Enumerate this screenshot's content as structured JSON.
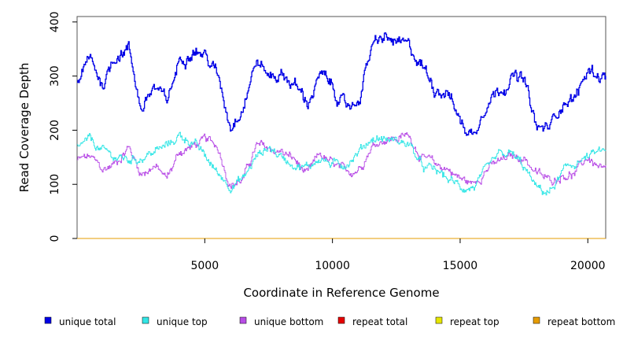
{
  "chart_data": {
    "type": "line",
    "title": "",
    "xlabel": "Coordinate in Reference Genome",
    "ylabel": "Read Coverage Depth",
    "xlim": [
      0,
      20700
    ],
    "ylim": [
      0,
      410
    ],
    "xticks": [
      5000,
      10000,
      15000,
      20000
    ],
    "xtick_labels": [
      "5000",
      "10000",
      "15000",
      "20000"
    ],
    "yticks": [
      0,
      100,
      200,
      300,
      400
    ],
    "ytick_labels": [
      "0",
      "100",
      "200",
      "300",
      "400"
    ],
    "x": [
      0,
      500,
      1000,
      1500,
      2000,
      2500,
      3000,
      3500,
      4000,
      4500,
      5000,
      5500,
      6000,
      6500,
      7000,
      7500,
      8000,
      8500,
      9000,
      9500,
      10000,
      10500,
      11000,
      11500,
      12000,
      12500,
      13000,
      13500,
      14000,
      14500,
      15000,
      15500,
      16000,
      16500,
      17000,
      17500,
      18000,
      18500,
      19000,
      19500,
      20000,
      20650
    ],
    "series": [
      {
        "name": "unique total",
        "color": "#0000e6",
        "values": [
          290,
          330,
          285,
          340,
          355,
          240,
          280,
          250,
          330,
          355,
          340,
          300,
          210,
          250,
          330,
          300,
          305,
          285,
          250,
          300,
          280,
          240,
          255,
          350,
          370,
          360,
          350,
          320,
          280,
          275,
          215,
          190,
          255,
          275,
          300,
          290,
          200,
          205,
          255,
          260,
          310,
          300
        ]
      },
      {
        "name": "unique top",
        "color": "#33e6e6",
        "values": [
          170,
          180,
          160,
          150,
          145,
          150,
          160,
          170,
          190,
          180,
          150,
          120,
          100,
          110,
          150,
          170,
          150,
          140,
          130,
          150,
          135,
          140,
          160,
          185,
          185,
          180,
          175,
          130,
          125,
          110,
          95,
          95,
          120,
          150,
          155,
          130,
          90,
          85,
          120,
          140,
          150,
          160
        ]
      },
      {
        "name": "unique bottom",
        "color": "#b84de6",
        "values": [
          145,
          150,
          125,
          140,
          170,
          120,
          135,
          110,
          160,
          170,
          180,
          170,
          100,
          110,
          170,
          165,
          160,
          145,
          115,
          155,
          135,
          120,
          130,
          170,
          185,
          185,
          190,
          150,
          135,
          130,
          110,
          100,
          130,
          140,
          150,
          150,
          120,
          105,
          120,
          120,
          150,
          120
        ]
      },
      {
        "name": "repeat total",
        "color": "#e60000",
        "values": [
          0,
          0,
          0,
          0,
          0,
          0,
          0,
          0,
          0,
          0,
          0,
          0,
          0,
          0,
          0,
          0,
          0,
          0,
          0,
          0,
          0,
          0,
          0,
          0,
          0,
          0,
          0,
          0,
          0,
          0,
          0,
          0,
          0,
          0,
          0,
          0,
          0,
          0,
          0,
          0,
          0,
          0
        ]
      },
      {
        "name": "repeat top",
        "color": "#e6e600",
        "values": [
          0,
          0,
          0,
          0,
          0,
          0,
          0,
          0,
          0,
          0,
          0,
          0,
          0,
          0,
          0,
          0,
          0,
          0,
          0,
          0,
          0,
          0,
          0,
          0,
          0,
          0,
          0,
          0,
          0,
          0,
          0,
          0,
          0,
          0,
          0,
          0,
          0,
          0,
          0,
          0,
          0,
          0
        ]
      },
      {
        "name": "repeat bottom",
        "color": "#e69c00",
        "values": [
          0,
          0,
          0,
          0,
          0,
          0,
          0,
          0,
          0,
          0,
          0,
          0,
          0,
          0,
          0,
          0,
          0,
          0,
          0,
          0,
          0,
          0,
          0,
          0,
          0,
          0,
          0,
          0,
          0,
          0,
          0,
          0,
          0,
          0,
          0,
          0,
          0,
          0,
          0,
          0,
          0,
          0
        ]
      }
    ],
    "legend_position": "bottom"
  }
}
